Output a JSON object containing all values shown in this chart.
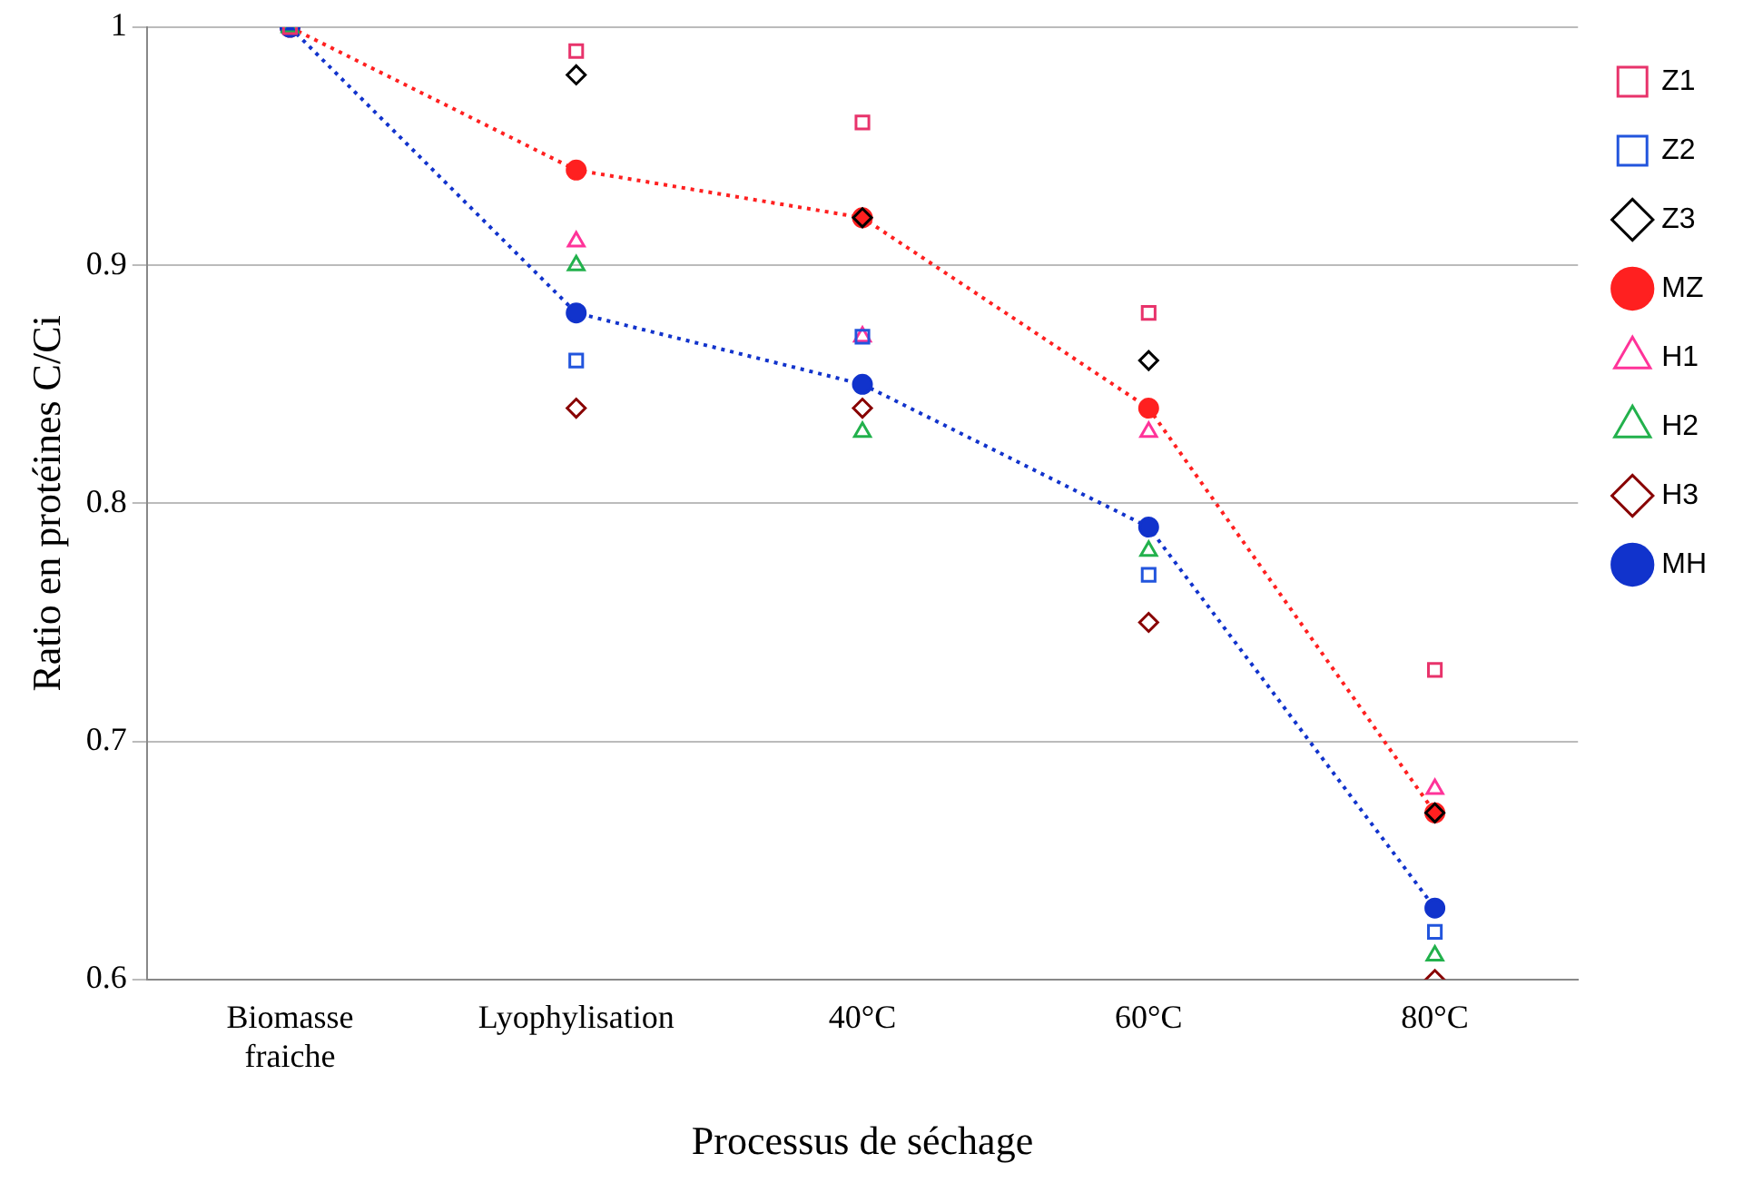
{
  "chart_data": {
    "type": "scatter",
    "xlabel": "Processus de séchage",
    "ylabel": "Ratio en protéines C/Ci",
    "categories": [
      "Biomasse fraiche",
      "Lyophylisation",
      "40°C",
      "60°C",
      "80°C"
    ],
    "ylim": [
      0.6,
      1
    ],
    "yticks": [
      0.6,
      0.7,
      0.8,
      0.9,
      1
    ],
    "grid": "y",
    "legend": "right",
    "series": [
      {
        "name": "Z1",
        "marker": "square",
        "color": "#e8336b",
        "values": [
          1,
          0.99,
          0.96,
          0.88,
          0.73
        ]
      },
      {
        "name": "Z2",
        "marker": "square",
        "color": "#2255dd",
        "values": [
          null,
          0.86,
          0.87,
          0.77,
          0.62
        ]
      },
      {
        "name": "Z3",
        "marker": "diamond",
        "color": "#000000",
        "values": [
          null,
          0.98,
          0.92,
          0.86,
          0.67
        ]
      },
      {
        "name": "MZ",
        "type": "line",
        "marker": "circle",
        "line_style": "dotted",
        "color": "#ff2020",
        "values": [
          1,
          0.94,
          0.92,
          0.84,
          0.67
        ]
      },
      {
        "name": "H1",
        "marker": "triangle",
        "color": "#ff3399",
        "values": [
          null,
          0.91,
          0.87,
          0.83,
          0.68
        ]
      },
      {
        "name": "H2",
        "marker": "triangle",
        "color": "#22b14c",
        "values": [
          1,
          0.9,
          0.83,
          0.78,
          0.61
        ]
      },
      {
        "name": "H3",
        "marker": "diamond",
        "color": "#880000",
        "values": [
          null,
          0.84,
          0.84,
          0.75,
          0.6
        ]
      },
      {
        "name": "MH",
        "type": "line",
        "marker": "circle",
        "line_style": "dotted",
        "color": "#1133cc",
        "values": [
          1,
          0.88,
          0.85,
          0.79,
          0.63
        ]
      }
    ]
  }
}
